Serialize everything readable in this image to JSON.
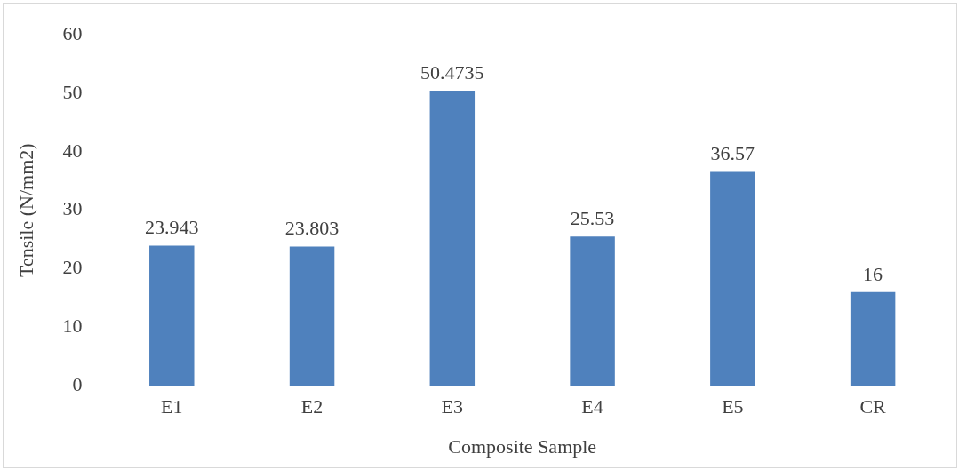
{
  "chart_data": {
    "type": "bar",
    "xlabel": "Composite Sample",
    "ylabel": "Tensile (N/mm2)",
    "categories": [
      "E1",
      "E2",
      "E3",
      "E4",
      "E5",
      "CR"
    ],
    "values": [
      23.943,
      23.803,
      50.4735,
      25.53,
      36.57,
      16
    ],
    "color": "#4f81bd",
    "ylim": [
      0,
      60
    ],
    "yticks": [
      0,
      10,
      20,
      30,
      40,
      50,
      60
    ],
    "grid": false,
    "legend": false,
    "data_labels": true
  }
}
